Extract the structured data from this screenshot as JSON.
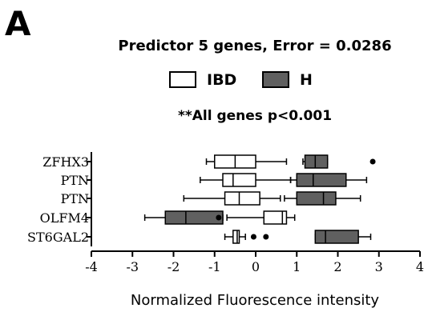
{
  "panel_label": "A",
  "chart_data": {
    "type": "box",
    "title": "Predictor 5 genes, Error = 0.0286",
    "annotation": "**All genes  p<0.001",
    "xlabel": "Normalized Fluorescence intensity",
    "ylabel": "",
    "xlim": [
      -4,
      4
    ],
    "xticks": [
      -4,
      -3,
      -2,
      -1,
      0,
      1,
      2,
      3,
      4
    ],
    "orientation": "horizontal",
    "grid": false,
    "legend_position": "top",
    "colors": {
      "IBD": "#ffffff",
      "H": "#606060"
    },
    "categories": [
      "ZFHX3",
      "PTN",
      "PTN",
      "OLFM4",
      "ST6GAL2"
    ],
    "series": [
      {
        "name": "IBD",
        "boxes": [
          {
            "whisker_low": -1.2,
            "q1": -1.0,
            "median": -0.5,
            "q3": 0.0,
            "whisker_high": 0.75,
            "outliers": []
          },
          {
            "whisker_low": -1.35,
            "q1": -0.8,
            "median": -0.55,
            "q3": 0.0,
            "whisker_high": 0.85,
            "outliers": []
          },
          {
            "whisker_low": -1.75,
            "q1": -0.75,
            "median": -0.4,
            "q3": 0.1,
            "whisker_high": 0.6,
            "outliers": []
          },
          {
            "whisker_low": -0.7,
            "q1": 0.2,
            "median": 0.65,
            "q3": 0.75,
            "whisker_high": 0.95,
            "outliers": []
          },
          {
            "whisker_low": -0.75,
            "q1": -0.55,
            "median": -0.45,
            "q3": -0.4,
            "whisker_high": -0.25,
            "outliers": [
              -0.05,
              0.25
            ]
          }
        ]
      },
      {
        "name": "H",
        "boxes": [
          {
            "whisker_low": 1.15,
            "q1": 1.2,
            "median": 1.45,
            "q3": 1.75,
            "whisker_high": 1.75,
            "outliers": [
              2.85
            ]
          },
          {
            "whisker_low": 0.85,
            "q1": 1.0,
            "median": 1.4,
            "q3": 2.2,
            "whisker_high": 2.7,
            "outliers": []
          },
          {
            "whisker_low": 0.7,
            "q1": 1.0,
            "median": 1.65,
            "q3": 1.95,
            "whisker_high": 2.55,
            "outliers": []
          },
          {
            "whisker_low": -2.7,
            "q1": -2.2,
            "median": -1.7,
            "q3": -0.8,
            "whisker_high": -0.8,
            "outliers": [
              -0.9
            ]
          },
          {
            "whisker_low": 1.45,
            "q1": 1.45,
            "median": 1.7,
            "q3": 2.5,
            "whisker_high": 2.8,
            "outliers": []
          }
        ]
      }
    ]
  }
}
